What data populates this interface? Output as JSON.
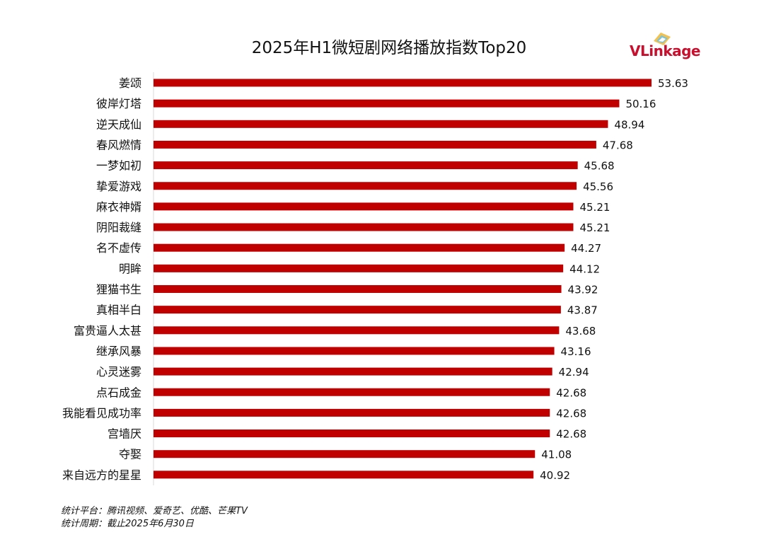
{
  "chart_data": {
    "type": "bar",
    "orientation": "horizontal",
    "title": "2025年H1微短剧网络播放指数Top20",
    "categories": [
      "姜颂",
      "彼岸灯塔",
      "逆天成仙",
      "春风燃情",
      "一梦如初",
      "挚爱游戏",
      "麻衣神婿",
      "阴阳裁缝",
      "名不虚传",
      "明眸",
      "狸猫书生",
      "真相半白",
      "富贵逼人太甚",
      "继承风暴",
      "心灵迷雾",
      "点石成金",
      "我能看见成功率",
      "宫墙厌",
      "夺娶",
      "来自远方的星星"
    ],
    "values": [
      53.63,
      50.16,
      48.94,
      47.68,
      45.68,
      45.56,
      45.21,
      45.21,
      44.27,
      44.12,
      43.92,
      43.87,
      43.68,
      43.16,
      42.94,
      42.68,
      42.68,
      42.68,
      41.08,
      40.92
    ],
    "value_labels": [
      "53.63",
      "50.16",
      "48.94",
      "47.68",
      "45.68",
      "45.56",
      "45.21",
      "45.21",
      "44.27",
      "44.12",
      "43.92",
      "43.87",
      "43.68",
      "43.16",
      "42.94",
      "42.68",
      "42.68",
      "42.68",
      "41.08",
      "40.92"
    ],
    "xlim": [
      0,
      54
    ],
    "bar_color": "#c00000",
    "grid": false,
    "legend": "none"
  },
  "logo": {
    "text": "VLinkage",
    "color": "#c8102e"
  },
  "footnotes": {
    "platforms": "统计平台：腾讯视频、爱奇艺、优酷、芒果TV",
    "period": "统计周期：截止2025年6月30日"
  }
}
